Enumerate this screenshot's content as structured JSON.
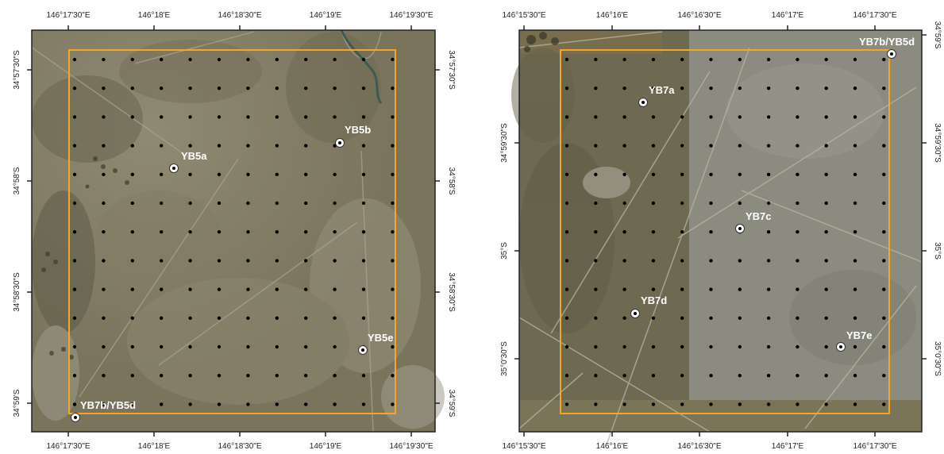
{
  "maps": [
    {
      "id": "left",
      "top_ticks": [
        "146°17'30\"E",
        "146°18'E",
        "146°18'30\"E",
        "146°19'E",
        "146°19'30\"E"
      ],
      "bottom_ticks": [
        "146°17'30\"E",
        "146°18'E",
        "146°18'30\"E",
        "146°19'E",
        "146°19'30\"E"
      ],
      "left_ticks": [
        "34°57'30\"S",
        "34°58'S",
        "34°58'30\"S",
        "34°59'S"
      ],
      "right_ticks": [
        "34°57'30\"S",
        "34°58'S",
        "34°58'30\"S",
        "34°59'S"
      ],
      "sites": [
        {
          "label": "YB5a"
        },
        {
          "label": "YB5b"
        },
        {
          "label": "YB5e"
        },
        {
          "label": "YB7b/YB5d"
        }
      ],
      "grid": {
        "rows": 13,
        "cols": 12
      },
      "colors": {
        "boundary": "#f5a623",
        "imagery": "#857e64"
      }
    },
    {
      "id": "right",
      "top_ticks": [
        "146°15'30\"E",
        "146°16'E",
        "146°16'30\"E",
        "146°17'E",
        "146°17'30\"E"
      ],
      "bottom_ticks": [
        "146°15'30\"E",
        "146°16'E",
        "146°16'30\"E",
        "146°17'E",
        "146°17'30\"E"
      ],
      "left_ticks": [
        "34°59'30\"S",
        "35°S",
        "35°0'30\"S"
      ],
      "right_ticks": [
        "34°59'S",
        "34°59'30\"S",
        "35°S",
        "35°0'30\"S"
      ],
      "sites": [
        {
          "label": "YB7a"
        },
        {
          "label": "YB7c"
        },
        {
          "label": "YB7d"
        },
        {
          "label": "YB7e"
        },
        {
          "label": "YB7b/YB5d"
        }
      ],
      "grid": {
        "rows": 13,
        "cols": 12
      },
      "colors": {
        "boundary": "#f5a623",
        "imagery": "#7a7459"
      }
    }
  ]
}
